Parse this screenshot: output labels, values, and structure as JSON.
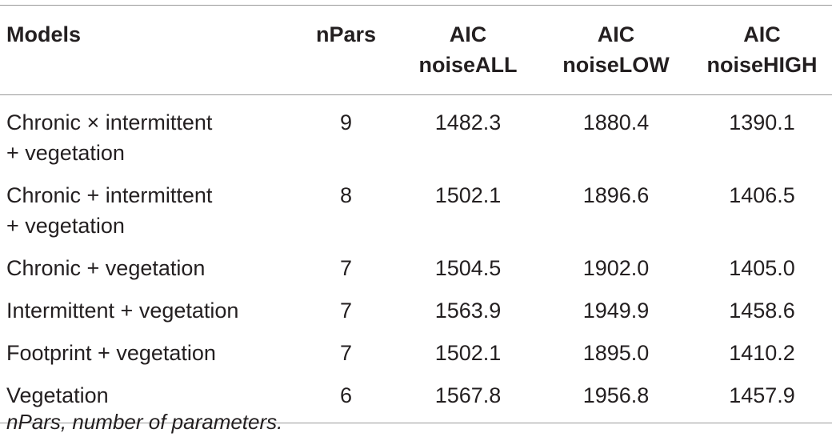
{
  "table": {
    "header": [
      "Models",
      "nPars",
      "AIC\nnoiseALL",
      "AIC\nnoiseLOW",
      "AIC\nnoiseHIGH"
    ],
    "rows": [
      [
        "Chronic × intermittent\n+ vegetation",
        "9",
        "1482.3",
        "1880.4",
        "1390.1"
      ],
      [
        "Chronic + intermittent\n+ vegetation",
        "8",
        "1502.1",
        "1896.6",
        "1406.5"
      ],
      [
        "Chronic + vegetation",
        "7",
        "1504.5",
        "1902.0",
        "1405.0"
      ],
      [
        "Intermittent + vegetation",
        "7",
        "1563.9",
        "1949.9",
        "1458.6"
      ],
      [
        "Footprint + vegetation",
        "7",
        "1502.1",
        "1895.0",
        "1410.2"
      ],
      [
        "Vegetation",
        "6",
        "1567.8",
        "1956.8",
        "1457.9"
      ]
    ],
    "footnote": "nPars, number of parameters."
  }
}
